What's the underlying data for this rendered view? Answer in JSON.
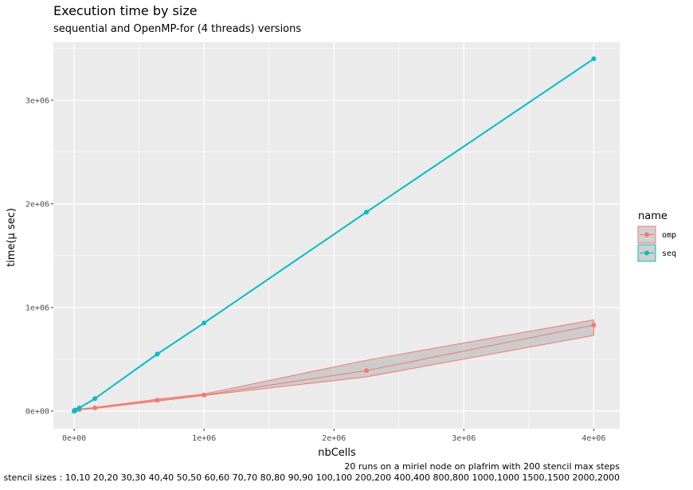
{
  "chart_data": {
    "type": "line",
    "title": "Execution time by size",
    "subtitle": "sequential and OpenMP-for (4 threads) versions",
    "xlabel": "nbCells",
    "ylabel": "time(µ sec)",
    "xlim": [
      -160000,
      4200000
    ],
    "ylim": [
      -170000,
      3560000
    ],
    "x_ticks": [
      0,
      1000000,
      2000000,
      3000000,
      4000000
    ],
    "x_tick_labels": [
      "0e+00",
      "1e+06",
      "2e+06",
      "3e+06",
      "4e+06"
    ],
    "y_ticks": [
      0,
      1000000,
      2000000,
      3000000
    ],
    "y_tick_labels": [
      "0e+00",
      "1e+06",
      "2e+06",
      "3e+06"
    ],
    "grid": true,
    "legend_title": "name",
    "legend_position": "right",
    "series": [
      {
        "name": "omp",
        "color": "#F8766D",
        "x": [
          100,
          400,
          900,
          1600,
          2500,
          3600,
          4900,
          6400,
          8100,
          10000,
          40000,
          160000,
          640000,
          1000000,
          2250000,
          4000000
        ],
        "y": [
          200,
          600,
          1200,
          2000,
          3000,
          4500,
          6000,
          7500,
          9000,
          11000,
          15000,
          30000,
          105000,
          155000,
          390000,
          830000
        ],
        "ymin": [
          150,
          500,
          1000,
          1700,
          2600,
          3900,
          5200,
          6600,
          8000,
          9500,
          12000,
          25000,
          95000,
          150000,
          330000,
          730000
        ],
        "ymax": [
          300,
          800,
          1500,
          2400,
          3500,
          5200,
          7000,
          8600,
          10300,
          12500,
          18000,
          35000,
          115000,
          165000,
          490000,
          880000
        ]
      },
      {
        "name": "seq",
        "color": "#00BFC4",
        "x": [
          100,
          400,
          900,
          1600,
          2500,
          3600,
          4900,
          6400,
          8100,
          10000,
          40000,
          160000,
          640000,
          1000000,
          2250000,
          4000000
        ],
        "y": [
          100,
          350,
          800,
          1400,
          2100,
          3000,
          4200,
          5500,
          7000,
          8500,
          30000,
          120000,
          550000,
          850000,
          1920000,
          3400000
        ]
      }
    ]
  },
  "caption_line1": "20 runs on a miriel node on plafrim with 200 stencil max steps",
  "caption_line2": "stencil sizes : 10,10 20,20 30,30 40,40 50,50 60,60 70,70 80,80 90,90 100,100 200,200 400,400 800,800 1000,1000 1500,1500 2000,2000"
}
